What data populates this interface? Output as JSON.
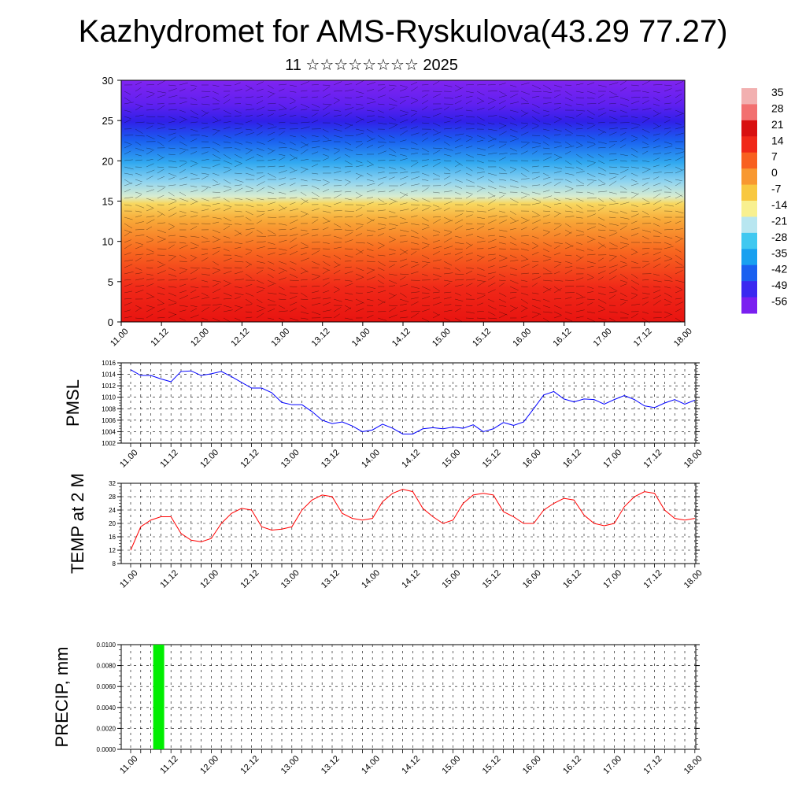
{
  "page": {
    "title": "Kazhydromet for AMS-Ryskulova(43.29 77.27)",
    "subtitle": "11 ☆☆☆☆☆☆☆☆ 2025"
  },
  "colors": {
    "pmsl_line": "#0000ff",
    "temp_line": "#ff0000",
    "precip_bar": "#00ee00",
    "grid": "#000000",
    "colorbar": [
      "#7a1ff0",
      "#3a28f0",
      "#1a60f0",
      "#18a0f0",
      "#40c8f0",
      "#b8e6f0",
      "#f8f090",
      "#f8c840",
      "#f89830",
      "#f86020",
      "#f02818",
      "#d81010",
      "#f27070",
      "#f2b0b0"
    ]
  },
  "chart_data": [
    {
      "type": "heatmap",
      "title": "",
      "ylim": [
        0,
        30
      ],
      "yticks": [
        "0",
        "5",
        "10",
        "15",
        "20",
        "25",
        "30"
      ],
      "x_ticklabels": [
        "11.00",
        "11.12",
        "12.00",
        "12.12",
        "13.00",
        "13.12",
        "14.00",
        "14.12",
        "15.00",
        "15.12",
        "16.00",
        "16.12",
        "17.00",
        "17.12",
        "18.00"
      ],
      "colorbar_labels": [
        "35",
        "28",
        "21",
        "14",
        "7",
        "0",
        "-7",
        "-14",
        "-21",
        "-28",
        "-35",
        "-42",
        "-49",
        "-56"
      ],
      "levels_y": [
        0,
        5,
        10,
        15,
        20,
        25,
        30
      ],
      "level_values": [
        28,
        18,
        8,
        -8,
        -25,
        -45,
        -60
      ]
    },
    {
      "type": "line",
      "ylabel": "PMSL",
      "ylim": [
        1002,
        1016
      ],
      "yticks": [
        "1016",
        "1014",
        "1012",
        "1010",
        "1008",
        "1006",
        "1004",
        "1002"
      ],
      "x_ticklabels": [
        "11.00",
        "11.12",
        "12.00",
        "12.12",
        "13.00",
        "13.12",
        "14.00",
        "14.12",
        "15.00",
        "15.12",
        "16.00",
        "16.12",
        "17.00",
        "17.12",
        "18.00"
      ],
      "values": [
        1014.8,
        1013.8,
        1013.8,
        1013.2,
        1012.7,
        1014.5,
        1014.6,
        1013.8,
        1014.1,
        1014.5,
        1013.6,
        1012.6,
        1011.6,
        1011.6,
        1010.8,
        1009.1,
        1008.7,
        1008.7,
        1007.5,
        1006.0,
        1005.4,
        1005.7,
        1005.0,
        1004.0,
        1004.3,
        1005.3,
        1004.6,
        1003.6,
        1003.6,
        1004.5,
        1004.7,
        1004.5,
        1004.8,
        1004.6,
        1005.2,
        1004.0,
        1004.5,
        1005.6,
        1005.1,
        1005.7,
        1008.0,
        1010.4,
        1011.0,
        1009.7,
        1009.2,
        1009.7,
        1009.6,
        1008.8,
        1009.6,
        1010.3,
        1009.6,
        1008.5,
        1008.2,
        1009.0,
        1009.6,
        1008.8,
        1009.5
      ]
    },
    {
      "type": "line",
      "ylabel": "TEMP at 2 M",
      "ylim": [
        8,
        32
      ],
      "yticks": [
        "32",
        "28",
        "24",
        "20",
        "16",
        "12",
        "8"
      ],
      "x_ticklabels": [
        "11.00",
        "11.12",
        "12.00",
        "12.12",
        "13.00",
        "13.12",
        "14.00",
        "14.12",
        "15.00",
        "15.12",
        "16.00",
        "16.12",
        "17.00",
        "17.12",
        "18.00"
      ],
      "values": [
        12.0,
        19.0,
        21.0,
        22.0,
        22.0,
        17.0,
        15.0,
        14.5,
        15.5,
        20.0,
        23.0,
        24.5,
        24.0,
        19.0,
        18.0,
        18.3,
        19.0,
        24.0,
        27.0,
        28.5,
        28.0,
        23.0,
        21.5,
        21.0,
        21.5,
        26.5,
        29.0,
        30.2,
        29.5,
        24.5,
        22.0,
        20.0,
        21.0,
        26.0,
        28.5,
        29.0,
        28.5,
        23.5,
        22.0,
        20.0,
        20.0,
        24.0,
        26.0,
        27.5,
        27.0,
        22.5,
        20.0,
        19.3,
        20.0,
        25.0,
        28.0,
        29.5,
        29.0,
        24.0,
        21.5,
        21.0,
        21.5
      ]
    },
    {
      "type": "bar",
      "ylabel": "PRECIP, mm",
      "ylim": [
        0,
        0.01
      ],
      "yticks": [
        "0.0100",
        "0.0080",
        "0.0060",
        "0.0040",
        "0.0020",
        "0.0000"
      ],
      "x_ticklabels": [
        "11.00",
        "11.12",
        "12.00",
        "12.12",
        "13.00",
        "13.12",
        "14.00",
        "14.12",
        "15.00",
        "15.12",
        "16.00",
        "16.12",
        "17.00",
        "17.12",
        "18.00"
      ],
      "bars": [
        {
          "x": "11.06",
          "value": 0.01
        }
      ]
    }
  ]
}
